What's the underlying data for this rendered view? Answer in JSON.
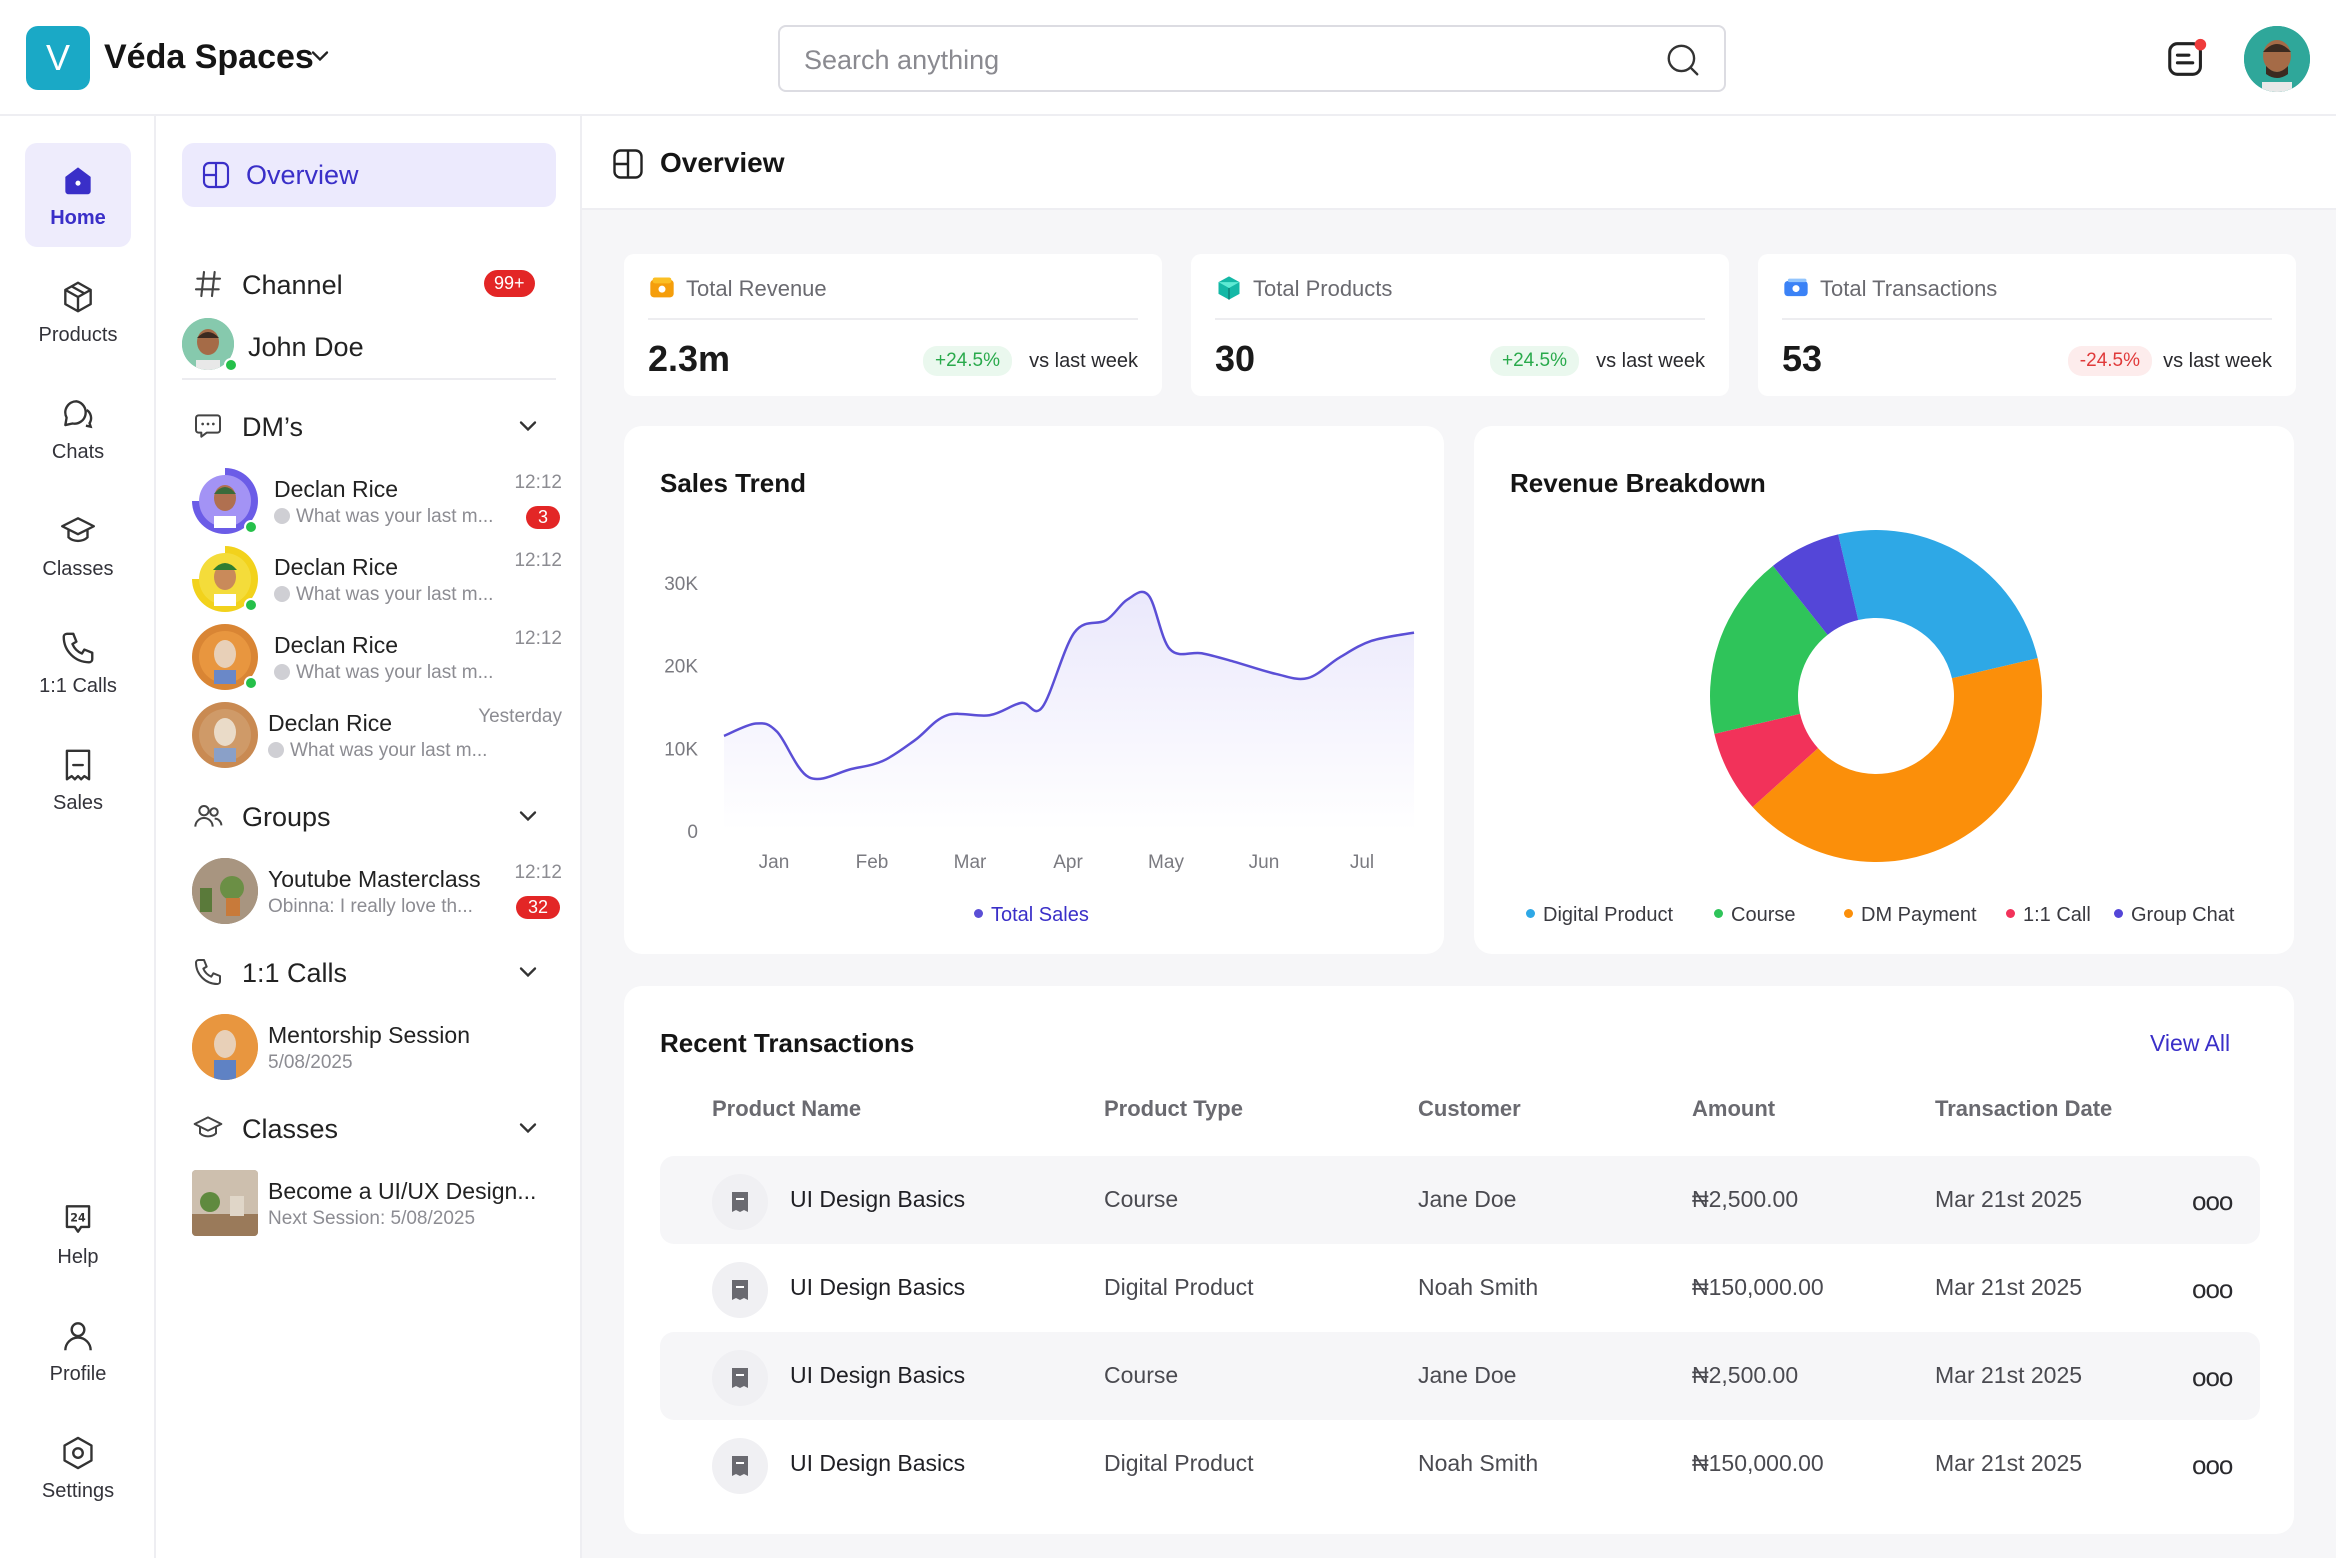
{
  "topbar": {
    "logo_letter": "V",
    "brand_name": "Véda Spaces",
    "search_placeholder": "Search anything"
  },
  "rail": {
    "items": [
      {
        "label": "Home",
        "icon": "home-icon",
        "active": true
      },
      {
        "label": "Products",
        "icon": "box-icon"
      },
      {
        "label": "Chats",
        "icon": "chat-icon"
      },
      {
        "label": "Classes",
        "icon": "graduation-cap-icon"
      },
      {
        "label": "1:1 Calls",
        "icon": "phone-icon"
      },
      {
        "label": "Sales",
        "icon": "receipt-icon"
      }
    ],
    "bottom_items": [
      {
        "label": "Help",
        "icon": "help-24-icon"
      },
      {
        "label": "Profile",
        "icon": "user-icon"
      },
      {
        "label": "Settings",
        "icon": "gear-icon"
      }
    ]
  },
  "panel": {
    "overview_label": "Overview",
    "channel_label": "Channel",
    "channel_badge": "99+",
    "user_name": "John Doe",
    "dms_label": "DM’s",
    "dms": [
      {
        "name": "Declan Rice",
        "message": "What was your last m...",
        "time": "12:12",
        "count": "3",
        "ring": "WEEKLY"
      },
      {
        "name": "Declan Rice",
        "message": "What was your last m...",
        "time": "12:12",
        "count": "",
        "ring": "MONTHLY"
      },
      {
        "name": "Declan Rice",
        "message": "What was your last m...",
        "time": "12:12",
        "count": "",
        "ring": "DAILY"
      },
      {
        "name": "Declan Rice",
        "message": "What was your last m...",
        "time": "Yesterday",
        "count": "",
        "ring": "EXPIRED"
      }
    ],
    "groups_label": "Groups",
    "group": {
      "name": "Youtube Masterclass",
      "message": "Obinna: I really love th...",
      "time": "12:12",
      "count": "32"
    },
    "calls_label": "1:1 Calls",
    "call": {
      "name": "Mentorship Session",
      "date": "5/08/2025"
    },
    "classes_label": "Classes",
    "class_item": {
      "name": "Become a UI/UX Design...",
      "next": "Next Session: 5/08/2025"
    }
  },
  "main": {
    "title": "Overview",
    "stats": [
      {
        "title": "Total Revenue",
        "value": "2.3m",
        "delta": "+24.5%",
        "trend": "up",
        "vs": "vs last week",
        "icon": "wallet-icon",
        "color": "#f59e0b"
      },
      {
        "title": "Total Products",
        "value": "30",
        "delta": "+24.5%",
        "trend": "up",
        "vs": "vs last week",
        "icon": "cube-icon",
        "color": "#14b8a6"
      },
      {
        "title": "Total Transactions",
        "value": "53",
        "delta": "-24.5%",
        "trend": "down",
        "vs": "vs last week",
        "icon": "cash-icon",
        "color": "#3b82f6"
      }
    ],
    "sales_title": "Sales Trend",
    "breakdown_title": "Revenue Breakdown",
    "transactions": {
      "title": "Recent Transactions",
      "view_all": "View All",
      "columns": [
        "Product Name",
        "Product Type",
        "Customer",
        "Amount",
        "Transaction Date"
      ],
      "rows": [
        {
          "name": "UI Design Basics",
          "type": "Course",
          "customer": "Jane Doe",
          "amount": "₦2,500.00",
          "date": "Mar 21st 2025"
        },
        {
          "name": "UI Design Basics",
          "type": "Digital Product",
          "customer": "Noah Smith",
          "amount": "₦150,000.00",
          "date": "Mar 21st 2025"
        },
        {
          "name": "UI Design Basics",
          "type": "Course",
          "customer": "Jane Doe",
          "amount": "₦2,500.00",
          "date": "Mar 21st 2025"
        },
        {
          "name": "UI Design Basics",
          "type": "Digital Product",
          "customer": "Noah Smith",
          "amount": "₦150,000.00",
          "date": "Mar 21st 2025"
        }
      ],
      "more_glyph": "ooo"
    }
  },
  "chart_data": [
    {
      "type": "area",
      "title": "Sales Trend",
      "categories": [
        "Jan",
        "Feb",
        "Mar",
        "Apr",
        "May",
        "Jun",
        "Jul"
      ],
      "y_ticks": [
        "0",
        "10K",
        "20K",
        "30K"
      ],
      "ylim": [
        0,
        30000
      ],
      "x": [
        0.0,
        0.3,
        0.5,
        0.8,
        1.2,
        1.5,
        1.8,
        2.1,
        2.5,
        2.8,
        3.0,
        3.3,
        3.6,
        3.8,
        4.0,
        4.2,
        4.5,
        4.8,
        5.2,
        5.5,
        5.8,
        6.1,
        6.5
      ],
      "series": [
        {
          "name": "Total Sales",
          "color": "#5b4fd6",
          "values": [
            11500,
            13000,
            12000,
            6500,
            7500,
            8500,
            11000,
            14000,
            14000,
            15500,
            15000,
            24000,
            25500,
            28000,
            28500,
            22000,
            21500,
            20500,
            19000,
            18500,
            21000,
            23000,
            24000
          ]
        }
      ],
      "legend_position": "bottom",
      "grid": false
    },
    {
      "type": "pie",
      "title": "Revenue Breakdown",
      "style": "donut",
      "slices": [
        {
          "label": "Digital Product",
          "value": 25,
          "color": "#2ea8e6"
        },
        {
          "label": "DM Payment",
          "value": 42,
          "color": "#fb8f0a"
        },
        {
          "label": "1:1 Call",
          "value": 8,
          "color": "#f2325a"
        },
        {
          "label": "Course",
          "value": 18,
          "color": "#2fc45a"
        },
        {
          "label": "Group Chat",
          "value": 7,
          "color": "#5446d8"
        }
      ],
      "legend": [
        {
          "label": "Digital Product",
          "color": "#2ea8e6"
        },
        {
          "label": "Course",
          "color": "#2fc45a"
        },
        {
          "label": "DM Payment",
          "color": "#fb8f0a"
        },
        {
          "label": "1:1 Call",
          "color": "#f2325a"
        },
        {
          "label": "Group Chat",
          "color": "#5446d8"
        }
      ],
      "legend_position": "bottom"
    }
  ]
}
